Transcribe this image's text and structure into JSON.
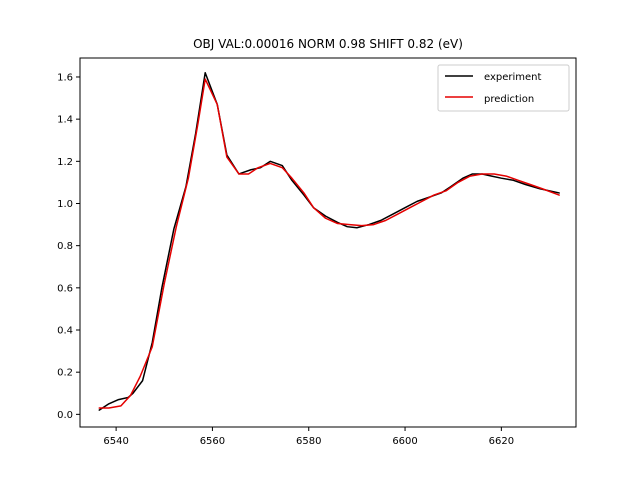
{
  "chart_data": {
    "type": "line",
    "title": "OBJ VAL:0.00016 NORM 0.98 SHIFT 0.82 (eV)",
    "xlabel": "",
    "ylabel": "",
    "xlim": [
      6532.5,
      6635.5
    ],
    "ylim": [
      -0.06,
      1.69
    ],
    "xticks": [
      6540,
      6560,
      6580,
      6600,
      6620
    ],
    "yticks": [
      0.0,
      0.2,
      0.4,
      0.6,
      0.8,
      1.0,
      1.2,
      1.4,
      1.6
    ],
    "xtick_labels": [
      "6540",
      "6560",
      "6580",
      "6600",
      "6620"
    ],
    "ytick_labels": [
      "0.0",
      "0.2",
      "0.4",
      "0.6",
      "0.8",
      "1.0",
      "1.2",
      "1.4",
      "1.6"
    ],
    "grid": false,
    "legend_position": "upper-right",
    "series": [
      {
        "name": "experiment",
        "color": "#000000",
        "x": [
          6536.5,
          6538.5,
          6540.5,
          6542.5,
          6543.5,
          6545.5,
          6547.5,
          6549.5,
          6552,
          6554.5,
          6556.5,
          6558.5,
          6561,
          6563,
          6565.5,
          6568,
          6570,
          6572,
          6574.5,
          6576.5,
          6579,
          6581,
          6583.5,
          6586,
          6588,
          6590,
          6592.5,
          6595,
          6597.5,
          6600,
          6602.5,
          6605,
          6607.5,
          6609.5,
          6612,
          6614,
          6616,
          6618,
          6620,
          6622.5,
          6625,
          6628,
          6632
        ],
        "y": [
          0.02,
          0.05,
          0.07,
          0.08,
          0.1,
          0.16,
          0.34,
          0.6,
          0.88,
          1.08,
          1.33,
          1.62,
          1.47,
          1.23,
          1.14,
          1.16,
          1.17,
          1.2,
          1.18,
          1.11,
          1.04,
          0.98,
          0.94,
          0.91,
          0.89,
          0.885,
          0.9,
          0.92,
          0.95,
          0.98,
          1.01,
          1.03,
          1.05,
          1.08,
          1.12,
          1.14,
          1.14,
          1.13,
          1.12,
          1.11,
          1.09,
          1.07,
          1.05
        ]
      },
      {
        "name": "prediction",
        "color": "#e50000",
        "x": [
          6536.5,
          6538.5,
          6541,
          6543,
          6545,
          6547.5,
          6550,
          6552.5,
          6555,
          6557,
          6558.5,
          6561,
          6563,
          6565.5,
          6567.5,
          6569.5,
          6572,
          6574.5,
          6576.5,
          6579,
          6581,
          6583.5,
          6586,
          6588.5,
          6591,
          6593.5,
          6596,
          6598.5,
          6601,
          6603.5,
          6606,
          6608.5,
          6611,
          6613.5,
          6616,
          6618.5,
          6621,
          6623.5,
          6626,
          6628.5,
          6632
        ],
        "y": [
          0.03,
          0.03,
          0.04,
          0.09,
          0.18,
          0.32,
          0.62,
          0.89,
          1.12,
          1.38,
          1.59,
          1.47,
          1.22,
          1.14,
          1.14,
          1.17,
          1.19,
          1.17,
          1.12,
          1.05,
          0.98,
          0.93,
          0.905,
          0.9,
          0.895,
          0.9,
          0.92,
          0.95,
          0.98,
          1.01,
          1.04,
          1.06,
          1.1,
          1.13,
          1.14,
          1.14,
          1.13,
          1.11,
          1.09,
          1.07,
          1.04
        ]
      }
    ]
  }
}
